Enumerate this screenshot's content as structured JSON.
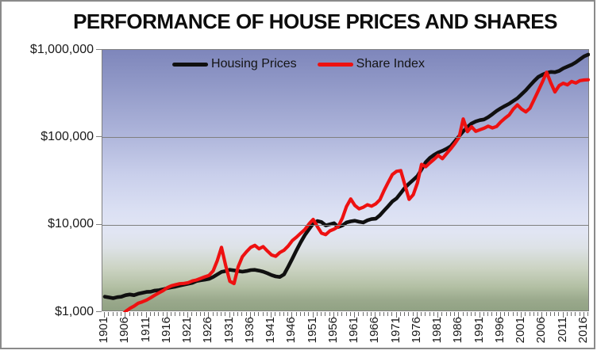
{
  "title": "PERFORMANCE OF HOUSE PRICES AND SHARES",
  "legend": {
    "items": [
      {
        "label": "Housing Prices",
        "color": "#101010"
      },
      {
        "label": "Share Index",
        "color": "#ee1111"
      }
    ]
  },
  "y_axis": {
    "scale": "log",
    "tick_labels": [
      "$1,000,000",
      "$100,000",
      "$10,000",
      "$1,000"
    ],
    "tick_values": [
      1000000,
      100000,
      10000,
      1000
    ]
  },
  "x_axis": {
    "tick_labels": [
      "1901",
      "1906",
      "1911",
      "1916",
      "1921",
      "1926",
      "1931",
      "1936",
      "1941",
      "1946",
      "1951",
      "1956",
      "1961",
      "1966",
      "1971",
      "1976",
      "1981",
      "1986",
      "1991",
      "1996",
      "2001",
      "2006",
      "2011",
      "2016"
    ],
    "minor_tick_step_years": 1
  },
  "chart_data": {
    "type": "line",
    "title": "PERFORMANCE OF HOUSE PRICES AND SHARES",
    "xlabel": "",
    "ylabel": "",
    "y_scale": "log",
    "ylim": [
      1000,
      1000000
    ],
    "xlim": [
      1901,
      2017
    ],
    "grid": true,
    "legend_position": "top-center",
    "plot_background": {
      "gradient_top": "#7e86bb",
      "gradient_mid": "#dde2f3",
      "gradient_bottom": "#91a284"
    },
    "series": [
      {
        "name": "Housing Prices",
        "color": "#101010",
        "stroke_width": 4.6,
        "points": [
          [
            1901,
            1500
          ],
          [
            1902,
            1470
          ],
          [
            1903,
            1440
          ],
          [
            1904,
            1480
          ],
          [
            1905,
            1500
          ],
          [
            1906,
            1560
          ],
          [
            1907,
            1590
          ],
          [
            1908,
            1560
          ],
          [
            1909,
            1620
          ],
          [
            1910,
            1660
          ],
          [
            1911,
            1700
          ],
          [
            1912,
            1710
          ],
          [
            1913,
            1760
          ],
          [
            1914,
            1780
          ],
          [
            1915,
            1820
          ],
          [
            1916,
            1880
          ],
          [
            1917,
            1920
          ],
          [
            1918,
            1960
          ],
          [
            1919,
            2010
          ],
          [
            1920,
            2060
          ],
          [
            1921,
            2110
          ],
          [
            1922,
            2160
          ],
          [
            1923,
            2260
          ],
          [
            1924,
            2310
          ],
          [
            1925,
            2350
          ],
          [
            1926,
            2400
          ],
          [
            1927,
            2520
          ],
          [
            1928,
            2700
          ],
          [
            1929,
            2880
          ],
          [
            1930,
            2950
          ],
          [
            1931,
            3050
          ],
          [
            1932,
            3000
          ],
          [
            1933,
            2950
          ],
          [
            1934,
            2900
          ],
          [
            1935,
            2950
          ],
          [
            1936,
            3020
          ],
          [
            1937,
            3040
          ],
          [
            1938,
            2980
          ],
          [
            1939,
            2900
          ],
          [
            1940,
            2780
          ],
          [
            1941,
            2650
          ],
          [
            1942,
            2560
          ],
          [
            1943,
            2520
          ],
          [
            1944,
            2700
          ],
          [
            1945,
            3300
          ],
          [
            1946,
            4100
          ],
          [
            1947,
            5100
          ],
          [
            1948,
            6300
          ],
          [
            1949,
            7600
          ],
          [
            1950,
            8900
          ],
          [
            1951,
            10300
          ],
          [
            1952,
            11000
          ],
          [
            1953,
            10700
          ],
          [
            1954,
            9800
          ],
          [
            1955,
            10100
          ],
          [
            1956,
            10400
          ],
          [
            1957,
            9400
          ],
          [
            1958,
            9800
          ],
          [
            1959,
            10600
          ],
          [
            1960,
            10900
          ],
          [
            1961,
            11100
          ],
          [
            1962,
            10800
          ],
          [
            1963,
            10600
          ],
          [
            1964,
            11200
          ],
          [
            1965,
            11600
          ],
          [
            1966,
            11700
          ],
          [
            1967,
            12800
          ],
          [
            1968,
            14500
          ],
          [
            1969,
            16300
          ],
          [
            1970,
            18500
          ],
          [
            1971,
            20000
          ],
          [
            1972,
            23000
          ],
          [
            1973,
            26500
          ],
          [
            1974,
            29500
          ],
          [
            1975,
            32500
          ],
          [
            1976,
            36000
          ],
          [
            1977,
            43000
          ],
          [
            1978,
            52000
          ],
          [
            1979,
            58000
          ],
          [
            1980,
            63000
          ],
          [
            1981,
            67000
          ],
          [
            1982,
            70000
          ],
          [
            1983,
            74000
          ],
          [
            1984,
            79000
          ],
          [
            1985,
            90000
          ],
          [
            1986,
            103000
          ],
          [
            1987,
            117000
          ],
          [
            1988,
            131000
          ],
          [
            1989,
            144000
          ],
          [
            1990,
            152000
          ],
          [
            1991,
            157000
          ],
          [
            1992,
            160000
          ],
          [
            1993,
            170000
          ],
          [
            1994,
            184000
          ],
          [
            1995,
            200000
          ],
          [
            1996,
            215000
          ],
          [
            1997,
            228000
          ],
          [
            1998,
            242000
          ],
          [
            1999,
            260000
          ],
          [
            2000,
            280000
          ],
          [
            2001,
            310000
          ],
          [
            2002,
            345000
          ],
          [
            2003,
            390000
          ],
          [
            2004,
            440000
          ],
          [
            2005,
            490000
          ],
          [
            2006,
            520000
          ],
          [
            2007,
            545000
          ],
          [
            2008,
            560000
          ],
          [
            2009,
            555000
          ],
          [
            2010,
            575000
          ],
          [
            2011,
            615000
          ],
          [
            2012,
            645000
          ],
          [
            2013,
            675000
          ],
          [
            2014,
            720000
          ],
          [
            2015,
            780000
          ],
          [
            2016,
            845000
          ],
          [
            2017,
            885000
          ]
        ]
      },
      {
        "name": "Share Index",
        "color": "#ee1111",
        "stroke_width": 4.2,
        "points": [
          [
            1905,
            900
          ],
          [
            1906,
            1020
          ],
          [
            1907,
            1100
          ],
          [
            1908,
            1170
          ],
          [
            1909,
            1260
          ],
          [
            1910,
            1310
          ],
          [
            1911,
            1370
          ],
          [
            1912,
            1460
          ],
          [
            1913,
            1560
          ],
          [
            1914,
            1660
          ],
          [
            1915,
            1760
          ],
          [
            1916,
            1900
          ],
          [
            1917,
            2000
          ],
          [
            1918,
            2060
          ],
          [
            1919,
            2110
          ],
          [
            1920,
            2130
          ],
          [
            1921,
            2170
          ],
          [
            1922,
            2270
          ],
          [
            1923,
            2330
          ],
          [
            1924,
            2430
          ],
          [
            1925,
            2530
          ],
          [
            1926,
            2630
          ],
          [
            1927,
            2960
          ],
          [
            1928,
            3900
          ],
          [
            1929,
            5500
          ],
          [
            1930,
            3400
          ],
          [
            1931,
            2250
          ],
          [
            1932,
            2120
          ],
          [
            1933,
            3300
          ],
          [
            1934,
            4300
          ],
          [
            1935,
            4900
          ],
          [
            1936,
            5500
          ],
          [
            1937,
            5800
          ],
          [
            1938,
            5300
          ],
          [
            1939,
            5600
          ],
          [
            1940,
            5000
          ],
          [
            1941,
            4500
          ],
          [
            1942,
            4350
          ],
          [
            1943,
            4800
          ],
          [
            1944,
            5100
          ],
          [
            1945,
            5700
          ],
          [
            1946,
            6600
          ],
          [
            1947,
            7200
          ],
          [
            1948,
            8000
          ],
          [
            1949,
            8800
          ],
          [
            1950,
            10200
          ],
          [
            1951,
            11500
          ],
          [
            1952,
            9500
          ],
          [
            1953,
            8000
          ],
          [
            1954,
            7700
          ],
          [
            1955,
            8500
          ],
          [
            1956,
            8900
          ],
          [
            1957,
            9500
          ],
          [
            1958,
            11900
          ],
          [
            1959,
            16200
          ],
          [
            1960,
            19700
          ],
          [
            1961,
            16600
          ],
          [
            1962,
            15200
          ],
          [
            1963,
            15800
          ],
          [
            1964,
            16900
          ],
          [
            1965,
            16300
          ],
          [
            1966,
            17300
          ],
          [
            1967,
            19300
          ],
          [
            1968,
            24600
          ],
          [
            1969,
            30500
          ],
          [
            1970,
            37500
          ],
          [
            1971,
            40800
          ],
          [
            1972,
            41600
          ],
          [
            1973,
            28500
          ],
          [
            1974,
            19500
          ],
          [
            1975,
            22000
          ],
          [
            1976,
            30000
          ],
          [
            1977,
            49000
          ],
          [
            1978,
            46000
          ],
          [
            1979,
            51000
          ],
          [
            1980,
            56000
          ],
          [
            1981,
            62000
          ],
          [
            1982,
            57000
          ],
          [
            1983,
            65000
          ],
          [
            1984,
            74000
          ],
          [
            1985,
            85000
          ],
          [
            1986,
            100000
          ],
          [
            1987,
            162000
          ],
          [
            1988,
            116000
          ],
          [
            1989,
            132000
          ],
          [
            1990,
            117000
          ],
          [
            1991,
            122000
          ],
          [
            1992,
            127000
          ],
          [
            1993,
            134000
          ],
          [
            1994,
            128000
          ],
          [
            1995,
            133000
          ],
          [
            1996,
            150000
          ],
          [
            1997,
            165000
          ],
          [
            1998,
            180000
          ],
          [
            1999,
            210000
          ],
          [
            2000,
            235000
          ],
          [
            2001,
            210000
          ],
          [
            2002,
            195000
          ],
          [
            2003,
            215000
          ],
          [
            2004,
            270000
          ],
          [
            2005,
            340000
          ],
          [
            2006,
            430000
          ],
          [
            2007,
            555000
          ],
          [
            2008,
            420000
          ],
          [
            2009,
            330000
          ],
          [
            2010,
            390000
          ],
          [
            2011,
            415000
          ],
          [
            2012,
            398000
          ],
          [
            2013,
            435000
          ],
          [
            2014,
            418000
          ],
          [
            2015,
            445000
          ],
          [
            2016,
            452000
          ],
          [
            2017,
            455000
          ]
        ]
      }
    ]
  }
}
